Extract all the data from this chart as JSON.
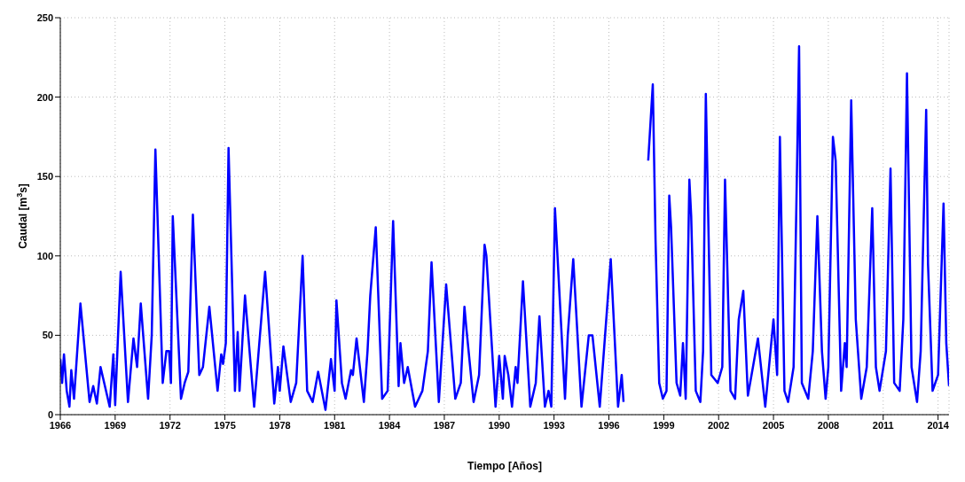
{
  "chart_data": {
    "type": "line",
    "xlabel": "Tiempo [Años]",
    "ylabel": "Caudal [m$^{3}$s]",
    "xlim": [
      1966,
      2014.6
    ],
    "xticks": [
      1966,
      1969,
      1972,
      1975,
      1978,
      1981,
      1984,
      1987,
      1990,
      1993,
      1996,
      1999,
      2002,
      2005,
      2008,
      2011,
      2014
    ],
    "ylim": [
      0,
      250
    ],
    "yticks": [
      0,
      50,
      100,
      150,
      200,
      250
    ],
    "grid": true,
    "line_style": "solid",
    "x": [
      1966.0,
      1966.1,
      1966.2,
      1966.35,
      1966.5,
      1966.6,
      1966.75,
      1967.1,
      1967.6,
      1967.8,
      1968.0,
      1968.2,
      1968.7,
      1968.9,
      1969.0,
      1969.3,
      1969.7,
      1970.0,
      1970.2,
      1970.4,
      1970.8,
      1970.9,
      1971.0,
      1971.2,
      1971.6,
      1971.8,
      1971.95,
      1972.05,
      1972.15,
      1972.6,
      1972.8,
      1973.0,
      1973.25,
      1973.6,
      1973.8,
      1974.15,
      1974.6,
      1974.8,
      1974.9,
      1975.05,
      1975.2,
      1975.55,
      1975.7,
      1975.8,
      1976.1,
      1976.6,
      1977.2,
      1977.7,
      1977.9,
      1978.0,
      1978.2,
      1978.6,
      1978.9,
      1979.25,
      1979.5,
      1979.8,
      1980.1,
      1980.5,
      1980.8,
      1981.0,
      1981.1,
      1981.4,
      1981.6,
      1981.9,
      1982.0,
      1982.2,
      1982.6,
      1982.8,
      1982.95,
      1983.25,
      1983.6,
      1983.9,
      1984.2,
      1984.5,
      1984.6,
      1984.8,
      1985.0,
      1985.4,
      1985.8,
      1986.1,
      1986.3,
      1986.7,
      1987.1,
      1987.6,
      1987.9,
      1988.1,
      1988.2,
      1988.6,
      1988.9,
      1989.2,
      1989.3,
      1989.8,
      1990.0,
      1990.2,
      1990.3,
      1990.5,
      1990.7,
      1990.9,
      1991.0,
      1991.3,
      1991.7,
      1992.0,
      1992.2,
      1992.5,
      1992.7,
      1992.85,
      1993.05,
      1993.6,
      1993.75,
      1994.05,
      1994.5,
      1994.9,
      1995.1,
      1995.5,
      1996.1,
      1996.5,
      1996.7,
      1996.8,
      1997.5,
      1998.15,
      1998.4,
      1998.55,
      1998.75,
      1998.95,
      1999.15,
      1999.3,
      1999.4,
      1999.7,
      1999.9,
      2000.05,
      2000.2,
      2000.4,
      2000.5,
      2000.75,
      2001.0,
      2001.15,
      2001.3,
      2001.6,
      2001.95,
      2002.2,
      2002.35,
      2002.65,
      2002.9,
      2003.1,
      2003.35,
      2003.6,
      2003.8,
      2004.15,
      2004.55,
      2005.0,
      2005.2,
      2005.35,
      2005.6,
      2005.8,
      2006.1,
      2006.4,
      2006.55,
      2006.9,
      2007.15,
      2007.4,
      2007.65,
      2007.85,
      2008.0,
      2008.25,
      2008.4,
      2008.7,
      2008.9,
      2009.0,
      2009.25,
      2009.5,
      2009.8,
      2010.1,
      2010.4,
      2010.6,
      2010.8,
      2011.15,
      2011.4,
      2011.6,
      2011.9,
      2012.1,
      2012.3,
      2012.55,
      2012.85,
      2013.05,
      2013.35,
      2013.45,
      2013.7,
      2014.0,
      2014.3,
      2014.45,
      2014.6
    ],
    "series": [
      {
        "color": "#0000ff",
        "values": [
          35,
          20,
          38,
          15,
          5,
          28,
          10,
          70,
          8,
          18,
          7,
          30,
          5,
          38,
          6,
          90,
          8,
          48,
          30,
          70,
          10,
          30,
          50,
          167,
          20,
          40,
          40,
          20,
          125,
          10,
          20,
          27,
          126,
          25,
          30,
          68,
          15,
          38,
          32,
          45,
          168,
          15,
          52,
          15,
          75,
          5,
          90,
          7,
          30,
          15,
          43,
          8,
          20,
          100,
          15,
          8,
          27,
          3,
          35,
          15,
          72,
          20,
          10,
          28,
          25,
          48,
          8,
          40,
          75,
          118,
          10,
          15,
          122,
          18,
          45,
          20,
          30,
          5,
          15,
          40,
          96,
          8,
          82,
          10,
          20,
          68,
          55,
          8,
          25,
          107,
          100,
          5,
          37,
          10,
          37,
          25,
          5,
          30,
          20,
          84,
          5,
          20,
          62,
          5,
          15,
          5,
          130,
          10,
          50,
          98,
          5,
          50,
          50,
          5,
          98,
          5,
          25,
          8,
          null,
          160,
          208,
          110,
          20,
          10,
          15,
          138,
          118,
          20,
          12,
          45,
          10,
          148,
          125,
          15,
          8,
          40,
          202,
          25,
          20,
          30,
          148,
          15,
          10,
          60,
          78,
          12,
          25,
          48,
          5,
          60,
          25,
          175,
          15,
          8,
          30,
          232,
          20,
          10,
          40,
          125,
          40,
          10,
          30,
          175,
          160,
          15,
          45,
          30,
          198,
          60,
          10,
          30,
          130,
          30,
          15,
          40,
          155,
          20,
          15,
          60,
          215,
          30,
          8,
          40,
          192,
          95,
          15,
          25,
          133,
          45,
          18
        ]
      }
    ]
  }
}
